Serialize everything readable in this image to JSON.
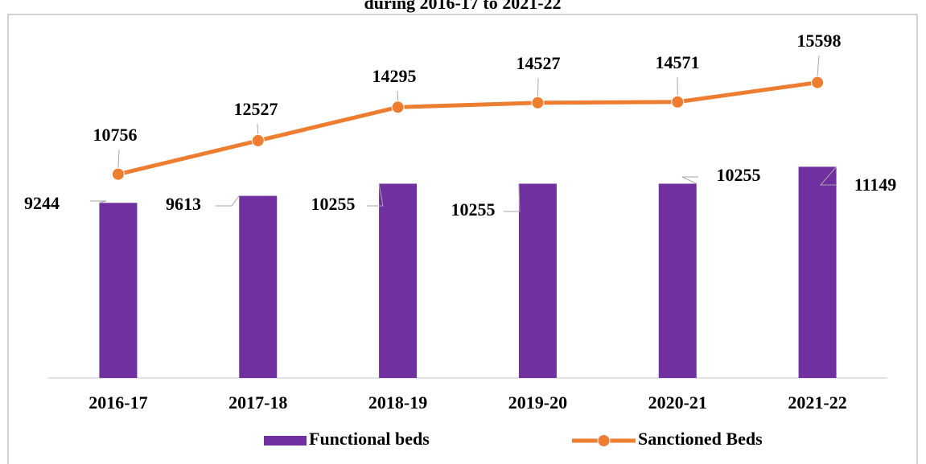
{
  "chart_data": {
    "type": "bar-line",
    "title": "during 2016-17 to 2021-22",
    "categories": [
      "2016-17",
      "2017-18",
      "2018-19",
      "2019-20",
      "2020-21",
      "2021-22"
    ],
    "series": [
      {
        "name": "Functional beds",
        "type": "bar",
        "color": "#7030a0",
        "values": [
          9244,
          9613,
          10255,
          10255,
          10255,
          11149
        ]
      },
      {
        "name": "Sanctioned Beds",
        "type": "line",
        "color": "#ed7d31",
        "values": [
          10756,
          12527,
          14295,
          14527,
          14571,
          15598
        ]
      }
    ],
    "ylim": [
      0,
      18000
    ],
    "grid": false,
    "legend": "bottom"
  }
}
